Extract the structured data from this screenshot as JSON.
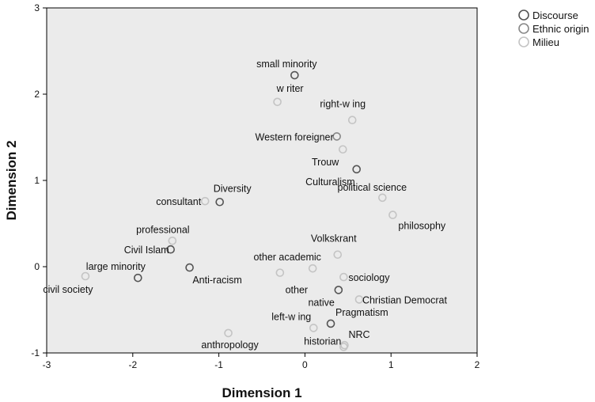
{
  "chart_data": {
    "type": "scatter",
    "title": "",
    "xlabel": "Dimension 1",
    "ylabel": "Dimension 2",
    "xlim": [
      -3,
      2
    ],
    "ylim": [
      -1,
      3
    ],
    "xticks": [
      -3,
      -2,
      -1,
      0,
      1,
      2
    ],
    "yticks": [
      -1,
      0,
      1,
      2,
      3
    ],
    "grid": false,
    "legend": "top-right outside",
    "series": [
      {
        "name": "Discourse",
        "color": "#555555",
        "points": [
          {
            "label": "small minority",
            "x": -0.12,
            "y": 2.22
          },
          {
            "label": "Culturalism",
            "x": 0.6,
            "y": 1.13
          },
          {
            "label": "Diversity",
            "x": -0.99,
            "y": 0.75
          },
          {
            "label": "Civil Islam",
            "x": -1.56,
            "y": 0.2
          },
          {
            "label": "large minority",
            "x": -1.94,
            "y": -0.13
          },
          {
            "label": "Anti-racism",
            "x": -1.34,
            "y": -0.01
          },
          {
            "label": "native",
            "x": 0.39,
            "y": -0.27
          },
          {
            "label": "Pragmatism",
            "x": 0.3,
            "y": -0.66
          }
        ]
      },
      {
        "name": "Ethnic origin",
        "color": "#888888",
        "points": [
          {
            "label": "Western foreigner",
            "x": 0.37,
            "y": 1.51
          }
        ]
      },
      {
        "name": "Milieu",
        "color": "#c4c4c4",
        "points": [
          {
            "label": "w riter",
            "x": -0.32,
            "y": 1.91
          },
          {
            "label": "right-w ing",
            "x": 0.55,
            "y": 1.7
          },
          {
            "label": "Trouw",
            "x": 0.44,
            "y": 1.36
          },
          {
            "label": "political science",
            "x": 0.9,
            "y": 0.8
          },
          {
            "label": "consultant",
            "x": -1.16,
            "y": 0.76
          },
          {
            "label": "philosophy",
            "x": 1.02,
            "y": 0.6
          },
          {
            "label": "professional",
            "x": -1.54,
            "y": 0.3
          },
          {
            "label": "Volkskrant",
            "x": 0.38,
            "y": 0.14
          },
          {
            "label": "other academic",
            "x": 0.09,
            "y": -0.02
          },
          {
            "label": "other",
            "x": -0.29,
            "y": -0.07
          },
          {
            "label": "sociology",
            "x": 0.45,
            "y": -0.12
          },
          {
            "label": "civil society",
            "x": -2.55,
            "y": -0.11
          },
          {
            "label": "Christian Democrat",
            "x": 0.63,
            "y": -0.38
          },
          {
            "label": "left-w ing",
            "x": 0.1,
            "y": -0.71
          },
          {
            "label": "anthropology",
            "x": -0.89,
            "y": -0.77
          },
          {
            "label": "NRC",
            "x": 0.46,
            "y": -0.91
          },
          {
            "label": "historian",
            "x": 0.45,
            "y": -0.93
          }
        ]
      }
    ]
  }
}
